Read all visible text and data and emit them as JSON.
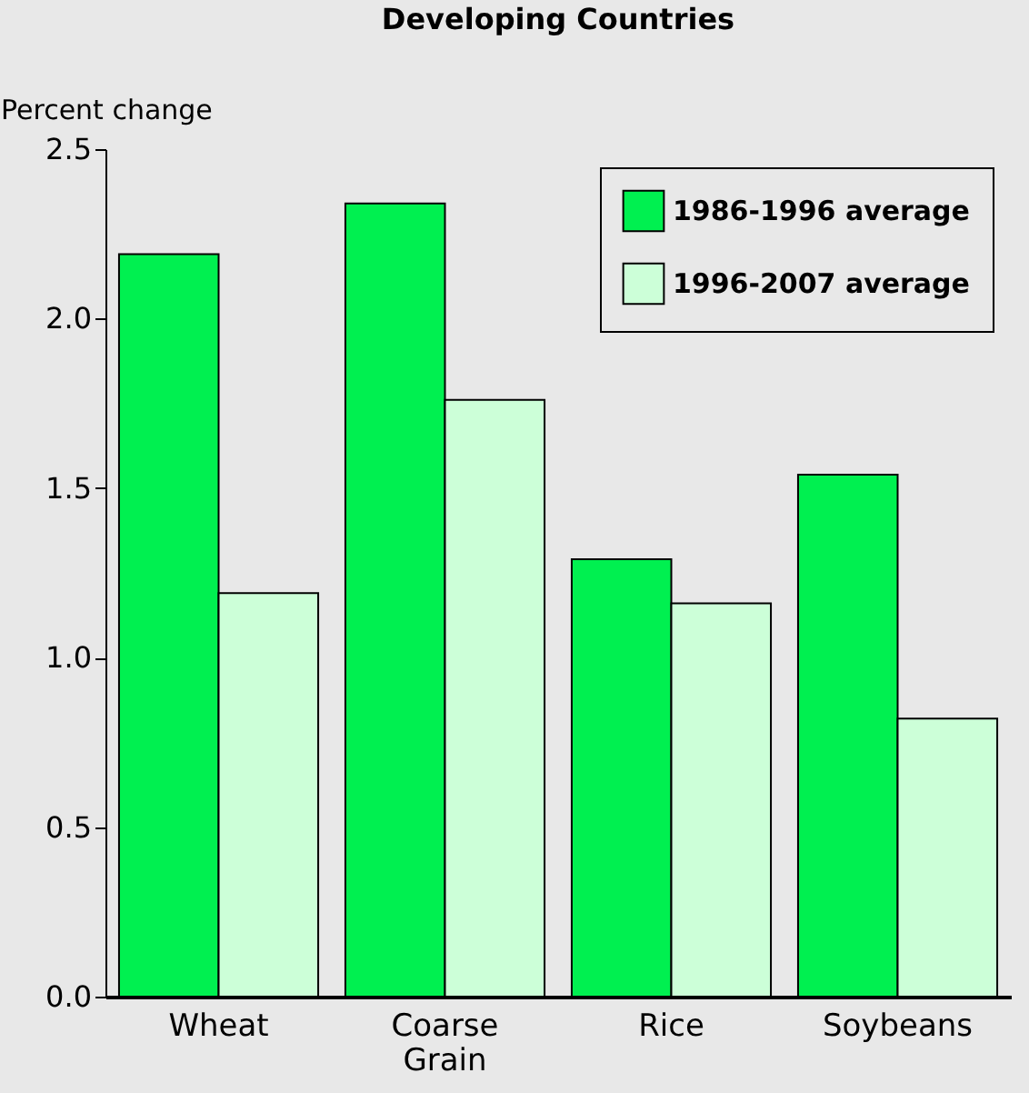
{
  "chart_data": {
    "type": "bar",
    "title": "Developing Countries",
    "ylabel": "Percent change",
    "categories": [
      "Wheat",
      "Coarse Grain",
      "Rice",
      "Soybeans"
    ],
    "series": [
      {
        "name": "1986-1996 average",
        "color": "#00f050",
        "values": [
          2.19,
          2.34,
          1.29,
          1.54
        ]
      },
      {
        "name": "1996-2007 average",
        "color": "#ccffd8",
        "values": [
          1.19,
          1.76,
          1.16,
          0.82
        ]
      }
    ],
    "ylim": [
      0,
      2.5
    ],
    "yticks": [
      {
        "value": 0,
        "label": "0.0"
      },
      {
        "value": 0.5,
        "label": "0.5"
      },
      {
        "value": 1,
        "label": "1.0"
      },
      {
        "value": 1.5,
        "label": "1.5"
      },
      {
        "value": 2,
        "label": "2.0"
      },
      {
        "value": 2.5,
        "label": "2.5"
      }
    ],
    "grid": false,
    "legend": "top right"
  }
}
